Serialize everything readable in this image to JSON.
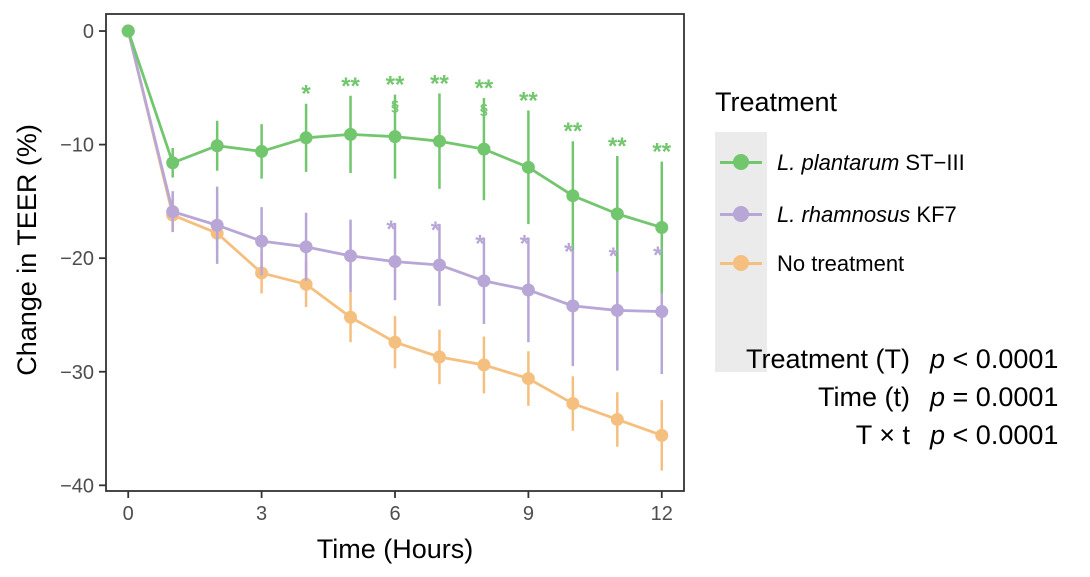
{
  "chart_data": {
    "type": "line",
    "xlabel": "Time (Hours)",
    "ylabel": "Change in TEER (%)",
    "xlim": [
      -0.5,
      12.5
    ],
    "ylim": [
      -40.5,
      1.5
    ],
    "x_ticks": [
      0,
      3,
      6,
      9,
      12
    ],
    "y_ticks": [
      0,
      -10,
      -20,
      -30,
      -40
    ],
    "y_tick_labels": [
      "0",
      "−10",
      "−20",
      "−30",
      "−40"
    ],
    "x": [
      0,
      1,
      2,
      3,
      4,
      5,
      6,
      7,
      8,
      9,
      10,
      11,
      12
    ],
    "grid": false,
    "legend_position": "right",
    "legend_title": "Treatment",
    "series": [
      {
        "name": "ST−III",
        "name_italic": "L. plantarum",
        "color": "#72c66e",
        "y": [
          0,
          -11.6,
          -10.1,
          -10.6,
          -9.4,
          -9.1,
          -9.3,
          -9.7,
          -10.4,
          -12.0,
          -14.5,
          -16.1,
          -17.3
        ],
        "err": [
          0,
          1.3,
          2.2,
          2.4,
          3.0,
          3.4,
          3.7,
          4.2,
          4.5,
          5.0,
          4.8,
          5.1,
          5.8
        ],
        "annotations": [
          "",
          "",
          "",
          "",
          "*",
          "**",
          "**",
          "**",
          "**",
          "**",
          "**",
          "**",
          "**"
        ],
        "section_marks": [
          "",
          "",
          "",
          "",
          "",
          "",
          "§",
          "",
          "§",
          "",
          "",
          "",
          ""
        ]
      },
      {
        "name": "KF7",
        "name_italic": "L. rhamnosus",
        "color": "#b8a6d6",
        "y": [
          0,
          -15.9,
          -17.1,
          -18.5,
          -19.0,
          -19.8,
          -20.3,
          -20.6,
          -22.0,
          -22.8,
          -24.2,
          -24.6,
          -24.7
        ],
        "err": [
          0,
          1.8,
          3.4,
          3.0,
          3.0,
          3.2,
          3.4,
          3.6,
          3.8,
          4.6,
          5.3,
          5.3,
          5.5
        ],
        "annotations": [
          "",
          "",
          "",
          "",
          "",
          "",
          "*",
          "*",
          "*",
          "*",
          "*",
          "*",
          "*"
        ]
      },
      {
        "name": "No treatment",
        "color": "#f5bf7f",
        "y": [
          0,
          -16.2,
          -17.8,
          -21.3,
          -22.3,
          -25.2,
          -27.4,
          -28.7,
          -29.4,
          -30.6,
          -32.8,
          -34.2,
          -35.6
        ],
        "err": [
          0,
          1.5,
          1.5,
          1.8,
          2.0,
          2.2,
          2.3,
          2.4,
          2.5,
          2.4,
          2.4,
          2.4,
          3.1
        ]
      }
    ]
  },
  "stats": [
    {
      "term": "Treatment (T)",
      "p_symbol": "p",
      "p_value": " < 0.0001"
    },
    {
      "term": "Time (t)",
      "p_symbol": "p",
      "p_value": " = 0.0001"
    },
    {
      "term": "T × t",
      "p_symbol": "p",
      "p_value": " < 0.0001"
    }
  ]
}
